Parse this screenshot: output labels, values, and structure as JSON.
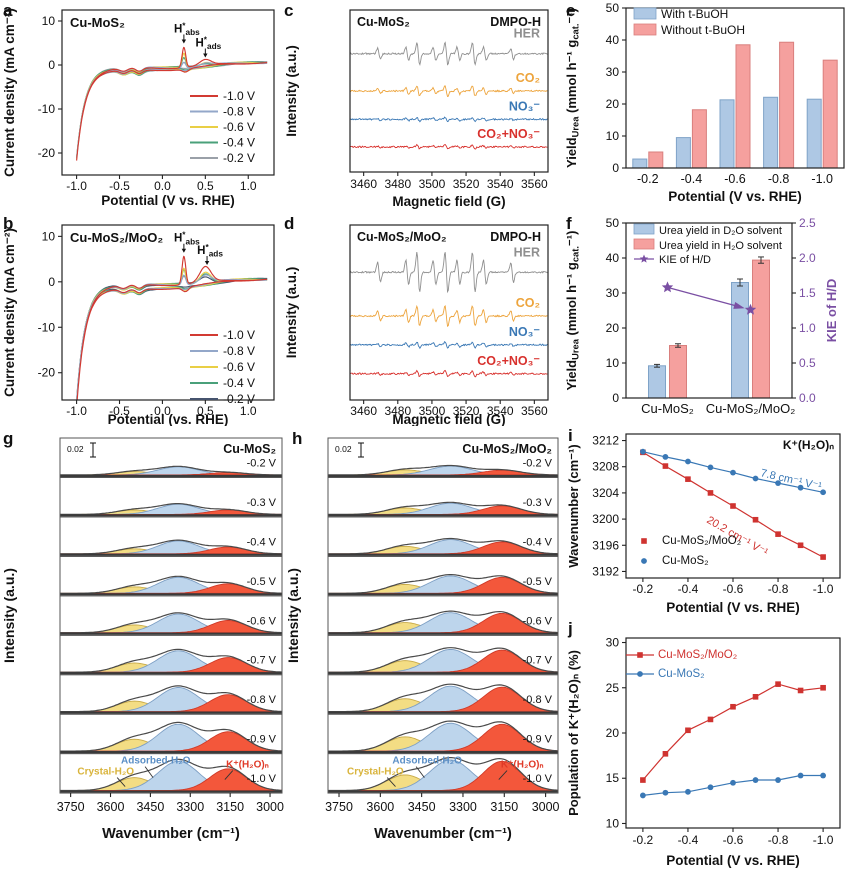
{
  "panel_letters": {
    "a": "a",
    "b": "b",
    "c": "c",
    "d": "d",
    "e": "e",
    "f": "f",
    "g": "g",
    "h": "h",
    "i": "i",
    "j": "j"
  },
  "chart_data": [
    {
      "panel": "a",
      "renderer": "lsv",
      "type": "line",
      "title": "Cu-MoS₂",
      "xlabel": "Potential (V vs. RHE)",
      "ylabel": "Current density (mA cm⁻²)",
      "xlim": [
        -1.17,
        1.3
      ],
      "ylim": [
        -25,
        12.5
      ],
      "xticks": [
        -1.0,
        -0.5,
        0.0,
        0.5,
        1.0
      ],
      "xtick_labels": [
        "-1.0",
        "-0.5",
        "0.0",
        "0.5",
        "1.0"
      ],
      "yticks": [
        10,
        0,
        -10,
        -20
      ],
      "hyst": 0.6,
      "annotations": [
        {
          "text": "H^*^~abs~",
          "x": 0.25,
          "peak_y": 4.9
        },
        {
          "text": "H^*^~ads~",
          "x": 0.5,
          "peak_y": 1.7
        }
      ],
      "series": [
        {
          "label": "-1.0 V",
          "color": "#d23a32",
          "depth": 21,
          "p1": 4.6,
          "p2": 1.2
        },
        {
          "label": "-0.8 V",
          "color": "#93a7c9",
          "depth": 20.6,
          "p1": 1.3,
          "p2": 0.55
        },
        {
          "label": "-0.6 V",
          "color": "#e9cf45",
          "depth": 20.8,
          "p1": 3.3,
          "p2": 0.85
        },
        {
          "label": "-0.4 V",
          "color": "#4aa07a",
          "depth": 20.5,
          "p1": 2.1,
          "p2": 0.7
        },
        {
          "label": "-0.2 V",
          "color": "#9aa0a8",
          "depth": 20.2,
          "p1": 0.9,
          "p2": 0.45
        }
      ]
    },
    {
      "panel": "b",
      "renderer": "lsv",
      "type": "line",
      "title": "Cu-MoS₂/MoO₂",
      "xlabel": "Potential (vs. RHE)",
      "ylabel": "Current density (mA cm⁻²)",
      "xlim": [
        -1.17,
        1.3
      ],
      "ylim": [
        -26,
        12.5
      ],
      "xticks": [
        -1.0,
        -0.5,
        0.0,
        0.5,
        1.0
      ],
      "xtick_labels": [
        "-1.0",
        "-0.5",
        "0.0",
        "0.5",
        "1.0"
      ],
      "yticks": [
        10,
        0,
        -10,
        -20
      ],
      "hyst": 1.1,
      "annotations": [
        {
          "text": "H^*^~abs~",
          "x": 0.25,
          "peak_y": 6.4
        },
        {
          "text": "H^*^~ads~",
          "x": 0.52,
          "peak_y": 3.7
        }
      ],
      "series": [
        {
          "label": "-1.0 V",
          "color": "#d23a32",
          "depth": 27,
          "p1": 6.2,
          "p2": 3.3
        },
        {
          "label": "-0.8 V",
          "color": "#93a7c9",
          "depth": 25.5,
          "p1": 2.2,
          "p2": 1.6
        },
        {
          "label": "-0.6 V",
          "color": "#e9cf45",
          "depth": 26,
          "p1": 3.6,
          "p2": 2.4
        },
        {
          "label": "-0.4 V",
          "color": "#4aa07a",
          "depth": 25.8,
          "p1": 3.1,
          "p2": 2.1
        },
        {
          "label": "-0.2 V",
          "color": "#46536e",
          "depth": 25.2,
          "p1": 1.6,
          "p2": 1.3
        }
      ]
    },
    {
      "panel": "c",
      "renderer": "epr",
      "type": "line",
      "title": "Cu-MoS₂",
      "corner": "DMPO-H",
      "xlabel": "Magnetic field (G)",
      "ylabel": "Intensity (a.u.)",
      "xlim": [
        3452,
        3568
      ],
      "xticks": [
        3460,
        3480,
        3500,
        3520,
        3540,
        3560
      ],
      "centers": [
        3469,
        3485.5,
        3492,
        3501.5,
        3508.5,
        3515.5,
        3524.5,
        3531,
        3547
      ],
      "rel_amps": [
        0.5,
        0.62,
        1,
        0.62,
        1,
        0.62,
        1,
        0.62,
        0.5
      ],
      "traces": [
        {
          "label": "HER",
          "color": "#8f8f8f",
          "amp": 11,
          "offset": 0.27
        },
        {
          "label": "CO₂",
          "color": "#eda43c",
          "amp": 5,
          "offset": 0.5
        },
        {
          "label": "NO₃⁻",
          "color": "#3a78b5",
          "amp": 2,
          "offset": 0.675
        },
        {
          "label": "CO₂+NO₃⁻",
          "color": "#d8312d",
          "amp": 1.7,
          "offset": 0.845
        }
      ]
    },
    {
      "panel": "d",
      "renderer": "epr",
      "type": "line",
      "title": "Cu-MoS₂/MoO₂",
      "corner": "DMPO-H",
      "xlabel": "Magnetic field (G)",
      "ylabel": "Intensity (a.u.)",
      "xlim": [
        3452,
        3568
      ],
      "xticks": [
        3460,
        3480,
        3500,
        3520,
        3540,
        3560
      ],
      "centers": [
        3469,
        3485.5,
        3492,
        3501.5,
        3508.5,
        3515.5,
        3524.5,
        3531,
        3547
      ],
      "rel_amps": [
        0.5,
        0.62,
        1,
        0.62,
        1,
        0.62,
        1,
        0.62,
        0.5
      ],
      "traces": [
        {
          "label": "HER",
          "color": "#8f8f8f",
          "amp": 20,
          "offset": 0.27
        },
        {
          "label": "CO₂",
          "color": "#eda43c",
          "amp": 10,
          "offset": 0.52
        },
        {
          "label": "NO₃⁻",
          "color": "#3a78b5",
          "amp": 3,
          "offset": 0.685
        },
        {
          "label": "CO₂+NO₃⁻",
          "color": "#d8312d",
          "amp": 2.6,
          "offset": 0.85
        }
      ]
    },
    {
      "panel": "e",
      "renderer": "bars",
      "type": "bar",
      "xlabel": "Potential (V vs. RHE)",
      "ylabel": "Yield~Urea~ (mmol h⁻¹ g~cat.~⁻¹)",
      "ylim": [
        0,
        50
      ],
      "yticks": [
        0,
        10,
        20,
        30,
        40,
        50
      ],
      "categories": [
        "-0.2",
        "-0.4",
        "-0.6",
        "-0.8",
        "-1.0"
      ],
      "series": [
        {
          "name": "With t-BuOH",
          "color": "#aec8e4",
          "edge": "#7fa3c8",
          "values": [
            2.8,
            9.5,
            21.3,
            22.1,
            21.5
          ]
        },
        {
          "name": "Without t-BuOH",
          "color": "#f5a09e",
          "edge": "#d97f7d",
          "values": [
            5.0,
            18.2,
            38.5,
            39.3,
            33.7
          ]
        }
      ]
    },
    {
      "panel": "f",
      "renderer": "barsf",
      "type": "bar",
      "ylabel": "Yield~Urea~ (mmol h⁻¹ g~cat.~⁻¹)",
      "right_ylabel": "KIE of H/D",
      "ylim": [
        0,
        50
      ],
      "yticks": [
        0,
        10,
        20,
        30,
        40,
        50
      ],
      "right_ylim": [
        0,
        2.5
      ],
      "right_ytick_labels": [
        "0.0",
        "0.5",
        "1.0",
        "1.5",
        "2.0",
        "2.5"
      ],
      "accent": "#7a4fa3",
      "categories": [
        "Cu-MoS₂",
        "Cu-MoS₂/MoO₂"
      ],
      "series": [
        {
          "name": "Urea yield in D₂O solvent",
          "color": "#aec8e4",
          "edge": "#7fa3c8",
          "values": [
            9.2,
            33.0
          ],
          "err": [
            0.4,
            1.0
          ]
        },
        {
          "name": "Urea yield in H₂O solvent",
          "color": "#f5a09e",
          "edge": "#d97f7d",
          "values": [
            15.0,
            39.4
          ],
          "err": [
            0.5,
            0.9
          ]
        }
      ],
      "kie": {
        "name": "KIE of H/D",
        "values": [
          1.58,
          1.26
        ]
      }
    },
    {
      "panel": "g",
      "renderer": "stack",
      "type": "area",
      "title": "Cu-MoS₂",
      "scalebar": "0.02",
      "xlabel": "Wavenumber (cm⁻¹)",
      "ylabel": "Intensity (a.u.)",
      "xlim": [
        3790,
        2955
      ],
      "xticks": [
        3750,
        3600,
        3450,
        3300,
        3150,
        3000
      ],
      "voltages": [
        "-0.2 V",
        "-0.3 V",
        "-0.4 V",
        "-0.5 V",
        "-0.6 V",
        "-0.7 V",
        "-0.8 V",
        "-0.9 V",
        "-1.0 V"
      ],
      "amps": [
        [
          0.1,
          0.24,
          0.07
        ],
        [
          0.13,
          0.3,
          0.13
        ],
        [
          0.15,
          0.38,
          0.2
        ],
        [
          0.19,
          0.47,
          0.28
        ],
        [
          0.23,
          0.55,
          0.36
        ],
        [
          0.27,
          0.63,
          0.43
        ],
        [
          0.31,
          0.71,
          0.5
        ],
        [
          0.35,
          0.79,
          0.57
        ],
        [
          0.38,
          0.86,
          0.64
        ]
      ],
      "peaks": [
        {
          "name": "Crystal-H₂O",
          "center": 3510,
          "sigma": 95,
          "fill": "#f3dd84",
          "edge": "#c8ab4a",
          "label_color": "#d9b43c"
        },
        {
          "name": "Adsorbed-H₂O",
          "center": 3345,
          "sigma": 108,
          "fill": "#bdd5ec",
          "edge": "#7d9fc4",
          "label_color": "#5b8fc6"
        },
        {
          "name": "K⁺(H₂O)ₙ",
          "center": 3158,
          "sigma": 96,
          "fill": "#f3573b",
          "edge": "#cf3a28",
          "label_color": "#e03a28"
        }
      ]
    },
    {
      "panel": "h",
      "renderer": "stack",
      "type": "area",
      "title": "Cu-MoS₂/MoO₂",
      "scalebar": "0.02",
      "xlabel": "Wavenumber (cm⁻¹)",
      "ylabel": "Intensity (a.u.)",
      "xlim": [
        3790,
        2955
      ],
      "xticks": [
        3750,
        3600,
        3450,
        3300,
        3150,
        3000
      ],
      "voltages": [
        "-0.2 V",
        "-0.3 V",
        "-0.4 V",
        "-0.5 V",
        "-0.6 V",
        "-0.7 V",
        "-0.8 V",
        "-0.9 V",
        "-1.0 V"
      ],
      "amps": [
        [
          0.15,
          0.26,
          0.14
        ],
        [
          0.19,
          0.33,
          0.25
        ],
        [
          0.22,
          0.42,
          0.35
        ],
        [
          0.26,
          0.51,
          0.47
        ],
        [
          0.3,
          0.59,
          0.57
        ],
        [
          0.34,
          0.67,
          0.65
        ],
        [
          0.38,
          0.75,
          0.72
        ],
        [
          0.42,
          0.82,
          0.79
        ],
        [
          0.46,
          0.9,
          0.86
        ]
      ],
      "peaks": [
        {
          "name": "Crystal-H₂O",
          "center": 3510,
          "sigma": 95,
          "fill": "#f3dd84",
          "edge": "#c8ab4a",
          "label_color": "#d9b43c"
        },
        {
          "name": "Adsorbed-H₂O",
          "center": 3345,
          "sigma": 108,
          "fill": "#bdd5ec",
          "edge": "#7d9fc4",
          "label_color": "#5b8fc6"
        },
        {
          "name": "K⁺(H₂O)ₙ",
          "center": 3158,
          "sigma": 96,
          "fill": "#f3573b",
          "edge": "#cf3a28",
          "label_color": "#e03a28"
        }
      ]
    },
    {
      "panel": "i",
      "renderer": "xy",
      "type": "line",
      "title": "K⁺(H₂O)ₙ",
      "xlabel": "Potential (V vs. RHE)",
      "ylabel": "Wavenumber (cm⁻¹)",
      "ylim": [
        3191,
        3213
      ],
      "yticks": [
        3192,
        3196,
        3200,
        3204,
        3208,
        3212
      ],
      "xticks": [
        -0.2,
        -0.4,
        -0.6,
        -0.8,
        -1.0
      ],
      "xtick_labels": [
        "-0.2",
        "-0.4",
        "-0.6",
        "-0.8",
        "-1.0"
      ],
      "x": [
        -0.2,
        -0.3,
        -0.4,
        -0.5,
        -0.6,
        -0.7,
        -0.8,
        -0.9,
        -1.0
      ],
      "legend": "markers",
      "series": [
        {
          "name": "Cu-MoS₂/MoO₂",
          "color": "#cf3330",
          "marker": "square",
          "values": [
            3210.2,
            3208.1,
            3206.1,
            3204.0,
            3202.0,
            3199.9,
            3197.7,
            3196.0,
            3194.2
          ],
          "slope": "20.2 cm⁻¹ V⁻¹"
        },
        {
          "name": "Cu-MoS₂",
          "color": "#3a78b5",
          "marker": "circle",
          "values": [
            3210.3,
            3209.5,
            3208.8,
            3207.9,
            3207.1,
            3206.2,
            3205.5,
            3204.8,
            3204.1
          ],
          "slope": "7.8 cm⁻¹ V⁻¹"
        }
      ]
    },
    {
      "panel": "j",
      "renderer": "xy",
      "type": "line",
      "xlabel": "Potential (V vs. RHE)",
      "ylabel": "Population of K⁺(H₂O)ₙ (%)",
      "ylim": [
        9.5,
        30.5
      ],
      "yticks": [
        10,
        15,
        20,
        25,
        30
      ],
      "xticks": [
        -0.2,
        -0.4,
        -0.6,
        -0.8,
        -1.0
      ],
      "xtick_labels": [
        "-0.2",
        "-0.4",
        "-0.6",
        "-0.8",
        "-1.0"
      ],
      "x": [
        -0.2,
        -0.3,
        -0.4,
        -0.5,
        -0.6,
        -0.7,
        -0.8,
        -0.9,
        -1.0
      ],
      "legend": "lines",
      "series": [
        {
          "name": "Cu-MoS₂/MoO₂",
          "color": "#cf3330",
          "marker": "square",
          "values": [
            14.8,
            17.7,
            20.3,
            21.5,
            22.9,
            24.0,
            25.4,
            24.7,
            25.0
          ]
        },
        {
          "name": "Cu-MoS₂",
          "color": "#3a78b5",
          "marker": "circle",
          "values": [
            13.1,
            13.4,
            13.5,
            14.0,
            14.5,
            14.8,
            14.8,
            15.3,
            15.3
          ]
        }
      ]
    }
  ]
}
